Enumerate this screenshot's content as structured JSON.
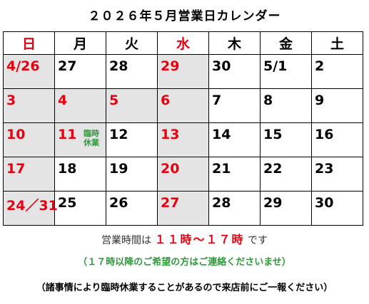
{
  "title": "２０２６年５月営業日カレンダー",
  "weekdays": [
    "日",
    "月",
    "火",
    "水",
    "木",
    "金",
    "土"
  ],
  "weeks": [
    [
      "4/26",
      "27",
      "28",
      "29",
      "30",
      "5/1",
      "2"
    ],
    [
      "3",
      "4",
      "5",
      "6",
      "7",
      "8",
      "9"
    ],
    [
      "10",
      "11",
      "12",
      "13",
      "14",
      "15",
      "16"
    ],
    [
      "17",
      "18",
      "19",
      "20",
      "21",
      "22",
      "23"
    ],
    [
      "24／31",
      "25",
      "26",
      "27",
      "28",
      "29",
      "30"
    ]
  ],
  "special_note": {
    "line1": "臨時",
    "line2": "休業"
  },
  "hours": {
    "prefix": "営業時間は",
    "range": "１１時～１７時",
    "suffix": "です"
  },
  "last_order_note": "（１７時以降のご希望の方はご連絡くださいませ）",
  "closure_notice": "（諸事情により臨時休業することがあるので来店前にご一報ください）",
  "colors": {
    "holiday": "#e60012",
    "note": "#2e9a3a",
    "shade": "#e4e4e4"
  }
}
